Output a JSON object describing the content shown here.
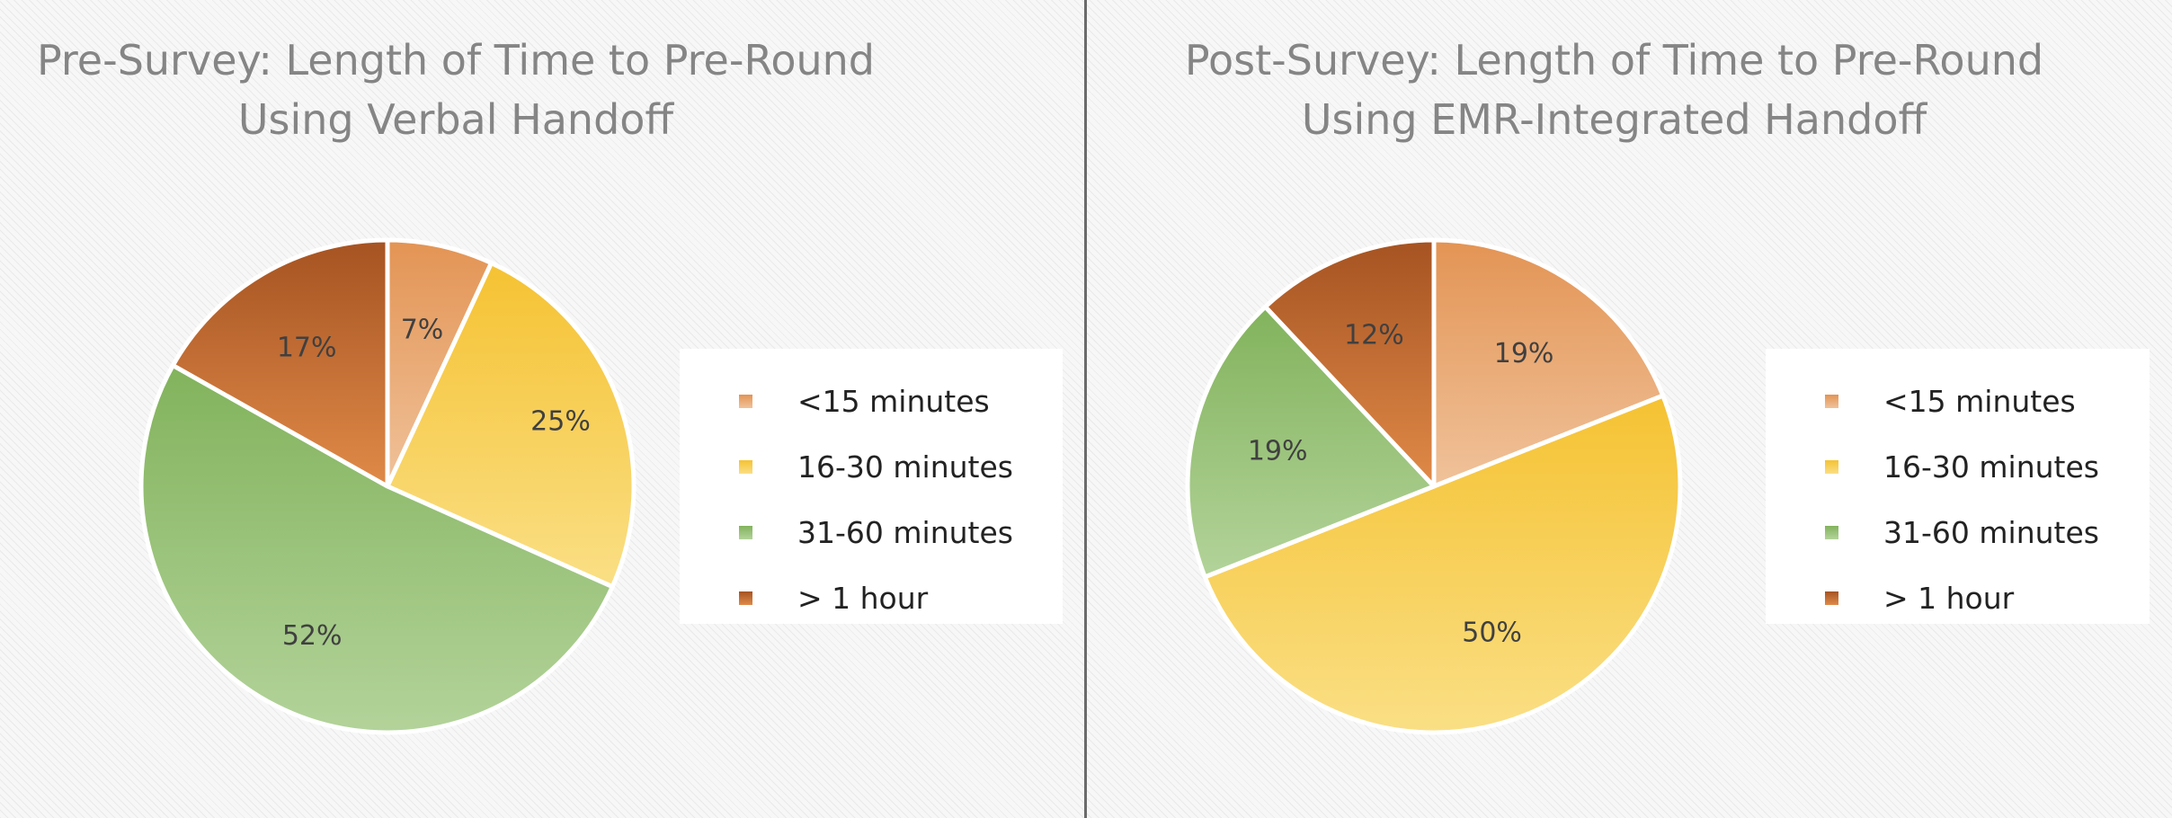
{
  "colors": {
    "lt15": [
      "#f0c29a",
      "#e39454"
    ],
    "m16_30": [
      "#fadf85",
      "#f5c232"
    ],
    "m31_60": [
      "#b3d39a",
      "#82b35c"
    ],
    "gt1h": [
      "#e08a48",
      "#a65322"
    ],
    "slice_stroke": "#ffffff"
  },
  "chart_data": [
    {
      "type": "pie",
      "title": [
        "Pre-Survey: Length of Time to Pre-Round",
        "Using Verbal Handoff"
      ],
      "categories": [
        "<15 minutes",
        "16-30 minutes",
        "31-60 minutes",
        "> 1 hour"
      ],
      "values": [
        7,
        25,
        52,
        17
      ],
      "labels": [
        "7%",
        "25%",
        "52%",
        "17%"
      ],
      "legend_position": "right"
    },
    {
      "type": "pie",
      "title": [
        "Post-Survey: Length of Time to Pre-Round",
        "Using EMR-Integrated Handoff"
      ],
      "categories": [
        "<15 minutes",
        "16-30 minutes",
        "31-60 minutes",
        "> 1 hour"
      ],
      "values": [
        19,
        50,
        19,
        12
      ],
      "labels": [
        "19%",
        "50%",
        "19%",
        "12%"
      ],
      "legend_position": "right"
    }
  ]
}
